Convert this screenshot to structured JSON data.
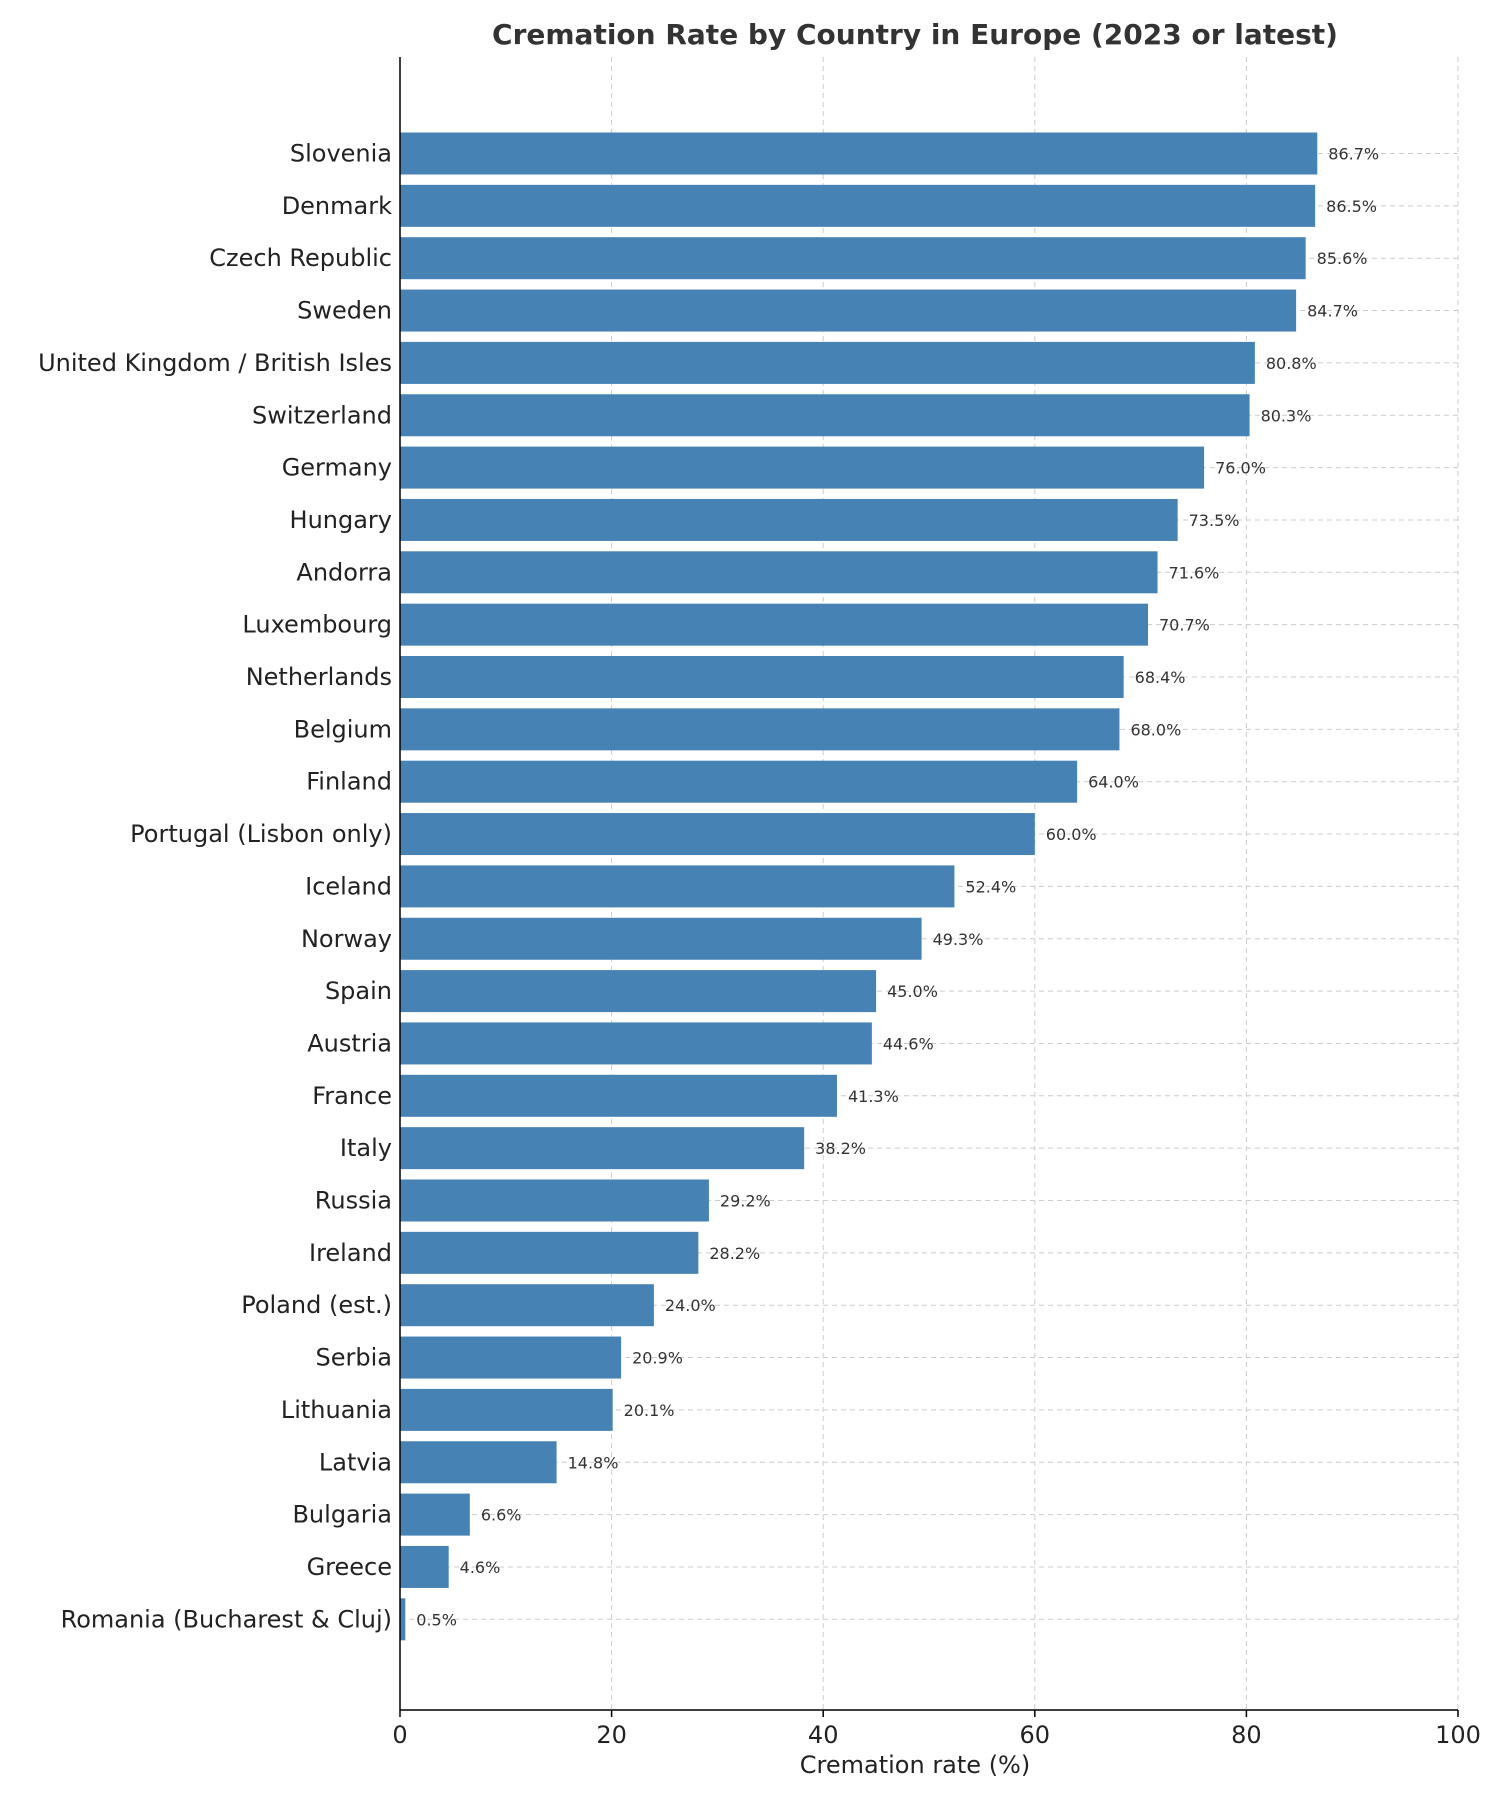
{
  "chart_data": {
    "type": "bar",
    "orientation": "horizontal",
    "title": "Cremation Rate by Country in Europe (2023 or latest)",
    "xlabel": "Cremation rate (%)",
    "ylabel": "",
    "xlim": [
      0,
      100
    ],
    "xticks": [
      0,
      20,
      40,
      60,
      80,
      100
    ],
    "grid": "dashed, vertical at ticks and horizontal at each bar",
    "bar_color": "#4682b4",
    "value_label_suffix": "%",
    "categories": [
      "Slovenia",
      "Denmark",
      "Czech Republic",
      "Sweden",
      "United Kingdom / British Isles",
      "Switzerland",
      "Germany",
      "Hungary",
      "Andorra",
      "Luxembourg",
      "Netherlands",
      "Belgium",
      "Finland",
      "Portugal (Lisbon only)",
      "Iceland",
      "Norway",
      "Spain",
      "Austria",
      "France",
      "Italy",
      "Russia",
      "Ireland",
      "Poland (est.)",
      "Serbia",
      "Lithuania",
      "Latvia",
      "Bulgaria",
      "Greece",
      "Romania (Bucharest & Cluj)"
    ],
    "values": [
      86.7,
      86.5,
      85.6,
      84.7,
      80.8,
      80.3,
      76.0,
      73.5,
      71.6,
      70.7,
      68.4,
      68.0,
      64.0,
      60.0,
      52.4,
      49.3,
      45.0,
      44.6,
      41.3,
      38.2,
      29.2,
      28.2,
      24.0,
      20.9,
      20.1,
      14.8,
      6.6,
      4.6,
      0.5
    ]
  }
}
